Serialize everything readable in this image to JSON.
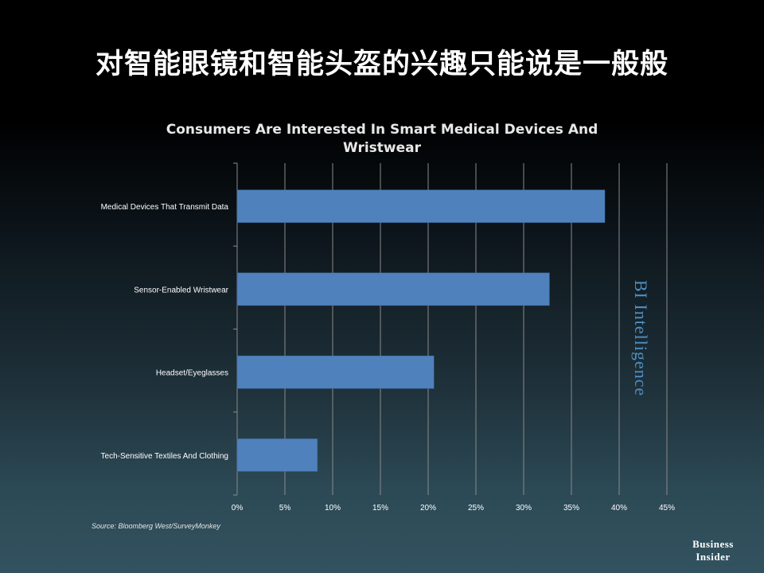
{
  "slide": {
    "title": "对智能眼镜和智能头盔的兴趣只能说是一般般"
  },
  "watermark": "BI Intelligence",
  "source": "Source: Bloomberg West/SurveyMonkey",
  "brand": {
    "line1": "Business",
    "line2": "Insider"
  },
  "colors": {
    "bar": "#4f81bd",
    "gridline": "#8a8a8a",
    "label": "#ffffff",
    "watermark": "#4f8fc2"
  },
  "chart_data": {
    "type": "bar",
    "orientation": "horizontal",
    "title": "Consumers Are Interested In Smart Medical Devices And Wristwear",
    "categories": [
      "Medical Devices That Transmit Data",
      "Sensor-Enabled Wristwear",
      "Headset/Eyeglasses",
      "Tech-Sensitive Textiles And Clothing"
    ],
    "values": [
      38.5,
      32.7,
      20.6,
      8.4
    ],
    "x_ticks": [
      "0%",
      "5%",
      "10%",
      "15%",
      "20%",
      "25%",
      "30%",
      "35%",
      "40%",
      "45%"
    ],
    "xlim": [
      0,
      45
    ],
    "grid": true,
    "legend": "none"
  }
}
